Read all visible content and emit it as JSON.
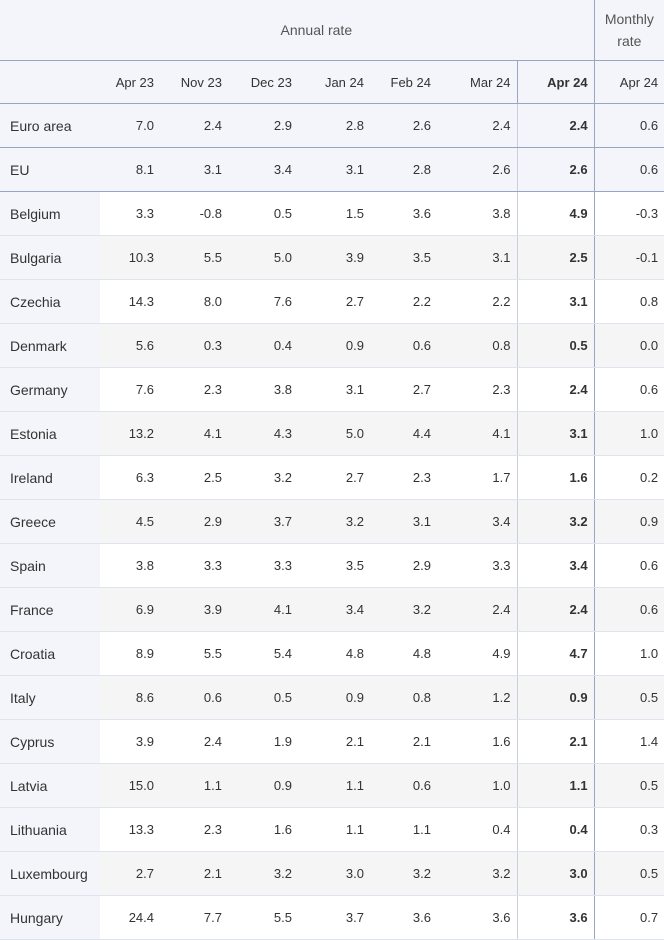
{
  "header": {
    "annual_label": "Annual rate",
    "monthly_label_line1": "Monthly",
    "monthly_label_line2": "rate",
    "columns": [
      "Apr 23",
      "Nov 23",
      "Dec 23",
      "Jan 24",
      "Feb 24",
      "Mar 24",
      "Apr 24",
      "Apr 24"
    ]
  },
  "rows": [
    {
      "name": "Euro area",
      "values": [
        "7.0",
        "2.4",
        "2.9",
        "2.8",
        "2.6",
        "2.4",
        "2.4",
        "0.6"
      ]
    },
    {
      "name": "EU",
      "values": [
        "8.1",
        "3.1",
        "3.4",
        "3.1",
        "2.8",
        "2.6",
        "2.6",
        "0.6"
      ]
    },
    {
      "name": "Belgium",
      "values": [
        "3.3",
        "-0.8",
        "0.5",
        "1.5",
        "3.6",
        "3.8",
        "4.9",
        "-0.3"
      ]
    },
    {
      "name": "Bulgaria",
      "values": [
        "10.3",
        "5.5",
        "5.0",
        "3.9",
        "3.5",
        "3.1",
        "2.5",
        "-0.1"
      ]
    },
    {
      "name": "Czechia",
      "values": [
        "14.3",
        "8.0",
        "7.6",
        "2.7",
        "2.2",
        "2.2",
        "3.1",
        "0.8"
      ]
    },
    {
      "name": "Denmark",
      "values": [
        "5.6",
        "0.3",
        "0.4",
        "0.9",
        "0.6",
        "0.8",
        "0.5",
        "0.0"
      ]
    },
    {
      "name": "Germany",
      "values": [
        "7.6",
        "2.3",
        "3.8",
        "3.1",
        "2.7",
        "2.3",
        "2.4",
        "0.6"
      ]
    },
    {
      "name": "Estonia",
      "values": [
        "13.2",
        "4.1",
        "4.3",
        "5.0",
        "4.4",
        "4.1",
        "3.1",
        "1.0"
      ]
    },
    {
      "name": "Ireland",
      "values": [
        "6.3",
        "2.5",
        "3.2",
        "2.7",
        "2.3",
        "1.7",
        "1.6",
        "0.2"
      ]
    },
    {
      "name": "Greece",
      "values": [
        "4.5",
        "2.9",
        "3.7",
        "3.2",
        "3.1",
        "3.4",
        "3.2",
        "0.9"
      ]
    },
    {
      "name": "Spain",
      "values": [
        "3.8",
        "3.3",
        "3.3",
        "3.5",
        "2.9",
        "3.3",
        "3.4",
        "0.6"
      ]
    },
    {
      "name": "France",
      "values": [
        "6.9",
        "3.9",
        "4.1",
        "3.4",
        "3.2",
        "2.4",
        "2.4",
        "0.6"
      ]
    },
    {
      "name": "Croatia",
      "values": [
        "8.9",
        "5.5",
        "5.4",
        "4.8",
        "4.8",
        "4.9",
        "4.7",
        "1.0"
      ]
    },
    {
      "name": "Italy",
      "values": [
        "8.6",
        "0.6",
        "0.5",
        "0.9",
        "0.8",
        "1.2",
        "0.9",
        "0.5"
      ]
    },
    {
      "name": "Cyprus",
      "values": [
        "3.9",
        "2.4",
        "1.9",
        "2.1",
        "2.1",
        "1.6",
        "2.1",
        "1.4"
      ]
    },
    {
      "name": "Latvia",
      "values": [
        "15.0",
        "1.1",
        "0.9",
        "1.1",
        "0.6",
        "1.0",
        "1.1",
        "0.5"
      ]
    },
    {
      "name": "Lithuania",
      "values": [
        "13.3",
        "2.3",
        "1.6",
        "1.1",
        "1.1",
        "0.4",
        "0.4",
        "0.3"
      ]
    },
    {
      "name": "Luxembourg",
      "values": [
        "2.7",
        "2.1",
        "3.2",
        "3.0",
        "3.2",
        "3.2",
        "3.0",
        "0.5"
      ]
    },
    {
      "name": "Hungary",
      "values": [
        "24.4",
        "7.7",
        "5.5",
        "3.7",
        "3.6",
        "3.6",
        "3.6",
        "0.7"
      ]
    }
  ]
}
